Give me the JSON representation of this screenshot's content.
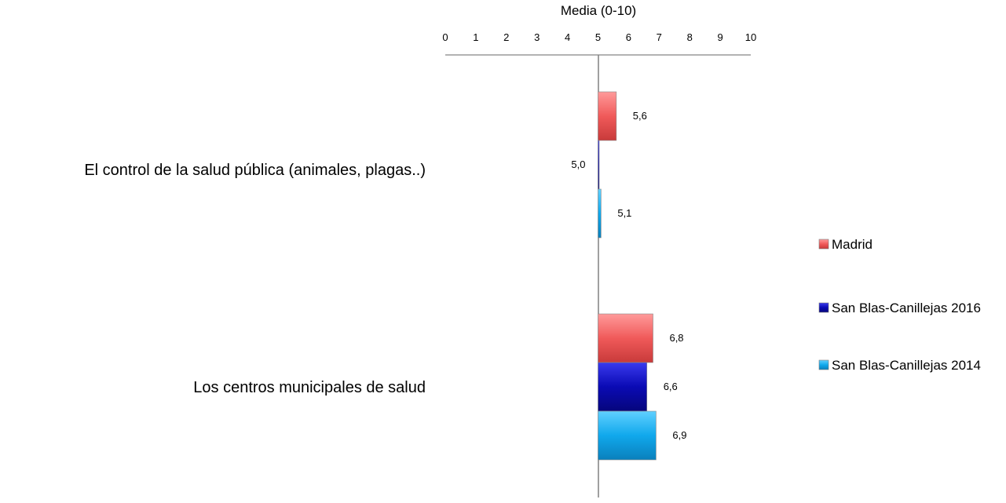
{
  "chart_data": {
    "type": "bar",
    "orientation": "horizontal",
    "axis_title": "Media (0-10)",
    "xlim": [
      0,
      10
    ],
    "x_ticks": [
      "0",
      "1",
      "2",
      "3",
      "4",
      "5",
      "6",
      "7",
      "8",
      "9",
      "10"
    ],
    "baseline": 5,
    "categories": [
      "El control de la salud pública (animales, plagas..)",
      "Los  centros municipales de salud"
    ],
    "series": [
      {
        "name": "Madrid",
        "color": "#f05a5a",
        "values": [
          5.6,
          6.8
        ],
        "labels": [
          "5,6",
          "6,8"
        ]
      },
      {
        "name": "San Blas-Canillejas 2016",
        "color": "#0a0ab4",
        "values": [
          5.0,
          6.6
        ],
        "labels": [
          "5,0",
          "6,6"
        ]
      },
      {
        "name": "San Blas-Canillejas 2014",
        "color": "#10a8ec",
        "values": [
          5.1,
          6.9
        ],
        "labels": [
          "5,1",
          "6,9"
        ]
      }
    ],
    "legend_position": "right",
    "grid": false
  }
}
